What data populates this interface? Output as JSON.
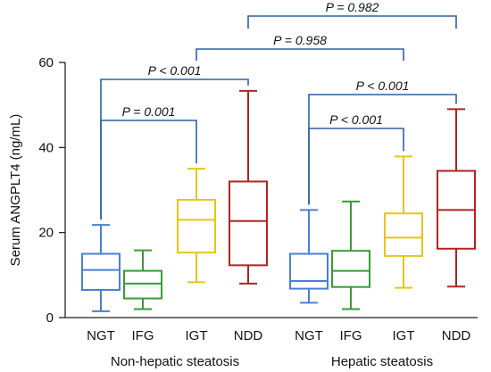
{
  "chart_data": {
    "type": "box",
    "ylabel": "Serum ANGPLT4 (ng/mL)",
    "ylim": [
      0,
      60
    ],
    "yticks": [
      0,
      20,
      40,
      60
    ],
    "grid": false,
    "groups": [
      {
        "label": "Non-hepatic steatosis",
        "categories": [
          "NGT",
          "IFG",
          "IGT",
          "NDD"
        ]
      },
      {
        "label": "Hepatic steatosis",
        "categories": [
          "NGT",
          "IFG",
          "IGT",
          "NDD"
        ]
      }
    ],
    "boxes": [
      {
        "group": "Non-hepatic steatosis",
        "category": "NGT",
        "color": "#4a7fd8",
        "min": 1.5,
        "q1": 6.5,
        "median": 11.2,
        "q3": 15.0,
        "max": 21.8
      },
      {
        "group": "Non-hepatic steatosis",
        "category": "IFG",
        "color": "#3a9c35",
        "min": 2.0,
        "q1": 4.5,
        "median": 8.0,
        "q3": 11.0,
        "max": 15.8
      },
      {
        "group": "Non-hepatic steatosis",
        "category": "IGT",
        "color": "#e6c619",
        "min": 8.3,
        "q1": 15.3,
        "median": 23.0,
        "q3": 27.7,
        "max": 35.0
      },
      {
        "group": "Non-hepatic steatosis",
        "category": "NDD",
        "color": "#b32222",
        "min": 8.0,
        "q1": 12.3,
        "median": 22.7,
        "q3": 32.0,
        "max": 53.3
      },
      {
        "group": "Hepatic steatosis",
        "category": "NGT",
        "color": "#4a7fd8",
        "min": 3.5,
        "q1": 6.8,
        "median": 8.6,
        "q3": 15.0,
        "max": 25.3
      },
      {
        "group": "Hepatic steatosis",
        "category": "IFG",
        "color": "#3a9c35",
        "min": 2.0,
        "q1": 7.2,
        "median": 11.0,
        "q3": 15.7,
        "max": 27.3
      },
      {
        "group": "Hepatic steatosis",
        "category": "IGT",
        "color": "#e6c619",
        "min": 7.0,
        "q1": 14.5,
        "median": 18.8,
        "q3": 24.5,
        "max": 37.9
      },
      {
        "group": "Hepatic steatosis",
        "category": "NDD",
        "color": "#b32222",
        "min": 7.3,
        "q1": 16.2,
        "median": 25.3,
        "q3": 34.5,
        "max": 49.0
      }
    ],
    "comparisons": [
      {
        "from": "Non-hepatic steatosis NGT",
        "to": "Non-hepatic steatosis IGT",
        "label": "P = 0.001"
      },
      {
        "from": "Non-hepatic steatosis NGT",
        "to": "Non-hepatic steatosis NDD",
        "label": "P < 0.001"
      },
      {
        "from": "Hepatic steatosis NGT",
        "to": "Hepatic steatosis IGT",
        "label": "P < 0.001"
      },
      {
        "from": "Hepatic steatosis NGT",
        "to": "Hepatic steatosis NDD",
        "label": "P < 0.001"
      },
      {
        "from": "Non-hepatic steatosis IGT",
        "to": "Hepatic steatosis IGT",
        "label": "P = 0.958"
      },
      {
        "from": "Non-hepatic steatosis NDD",
        "to": "Hepatic steatosis NDD",
        "label": "P = 0.982"
      }
    ],
    "bracket_color": "#2f5fa8"
  }
}
